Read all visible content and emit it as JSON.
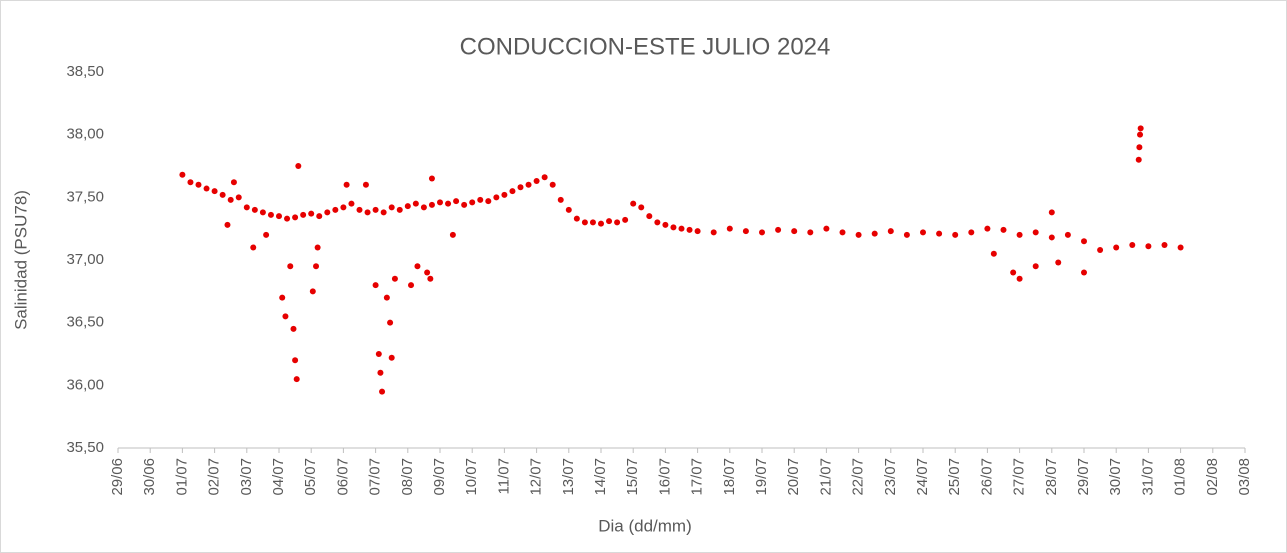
{
  "chart_data": {
    "type": "scatter",
    "title": "CONDUCCION-ESTE JULIO 2024",
    "x_label": "Dia (dd/mm)",
    "y_label": "Salinidad (PSU78)",
    "xlim": [
      0,
      35
    ],
    "xticks": [
      {
        "value": 0,
        "label": "29/06"
      },
      {
        "value": 1,
        "label": "30/06"
      },
      {
        "value": 2,
        "label": "01/07"
      },
      {
        "value": 3,
        "label": "02/07"
      },
      {
        "value": 4,
        "label": "03/07"
      },
      {
        "value": 5,
        "label": "04/07"
      },
      {
        "value": 6,
        "label": "05/07"
      },
      {
        "value": 7,
        "label": "06/07"
      },
      {
        "value": 8,
        "label": "07/07"
      },
      {
        "value": 9,
        "label": "08/07"
      },
      {
        "value": 10,
        "label": "09/07"
      },
      {
        "value": 11,
        "label": "10/07"
      },
      {
        "value": 12,
        "label": "11/07"
      },
      {
        "value": 13,
        "label": "12/07"
      },
      {
        "value": 14,
        "label": "13/07"
      },
      {
        "value": 15,
        "label": "14/07"
      },
      {
        "value": 16,
        "label": "15/07"
      },
      {
        "value": 17,
        "label": "16/07"
      },
      {
        "value": 18,
        "label": "17/07"
      },
      {
        "value": 19,
        "label": "18/07"
      },
      {
        "value": 20,
        "label": "19/07"
      },
      {
        "value": 21,
        "label": "20/07"
      },
      {
        "value": 22,
        "label": "21/07"
      },
      {
        "value": 23,
        "label": "22/07"
      },
      {
        "value": 24,
        "label": "23/07"
      },
      {
        "value": 25,
        "label": "24/07"
      },
      {
        "value": 26,
        "label": "25/07"
      },
      {
        "value": 27,
        "label": "26/07"
      },
      {
        "value": 28,
        "label": "27/07"
      },
      {
        "value": 29,
        "label": "28/07"
      },
      {
        "value": 30,
        "label": "29/07"
      },
      {
        "value": 31,
        "label": "30/07"
      },
      {
        "value": 32,
        "label": "31/07"
      },
      {
        "value": 33,
        "label": "01/08"
      },
      {
        "value": 34,
        "label": "02/08"
      },
      {
        "value": 35,
        "label": "03/08"
      }
    ],
    "ylim": [
      35.5,
      38.5
    ],
    "yticks": [
      {
        "value": 35.5,
        "label": "35,50"
      },
      {
        "value": 36,
        "label": "36,00"
      },
      {
        "value": 36.5,
        "label": "36,50"
      },
      {
        "value": 37,
        "label": "37,00"
      },
      {
        "value": 37.5,
        "label": "37,50"
      },
      {
        "value": 38,
        "label": "38,00"
      },
      {
        "value": 38.5,
        "label": "38,50"
      }
    ],
    "color": "#e60000",
    "x": [
      2.0,
      2.25,
      2.5,
      2.75,
      3.0,
      3.25,
      3.5,
      3.75,
      4.0,
      4.25,
      4.5,
      4.75,
      5.0,
      5.25,
      5.5,
      5.75,
      6.0,
      6.25,
      6.5,
      6.75,
      7.0,
      7.25,
      7.5,
      7.75,
      8.0,
      8.25,
      8.5,
      8.75,
      9.0,
      9.25,
      9.5,
      9.75,
      10.0,
      10.25,
      10.5,
      10.75,
      11.0,
      11.25,
      11.5,
      11.75,
      12.0,
      12.25,
      12.5,
      12.75,
      13.0,
      13.25,
      13.5,
      13.75,
      14.0,
      14.25,
      14.5,
      14.75,
      15.0,
      15.25,
      15.5,
      15.75,
      16.0,
      16.25,
      16.5,
      16.75,
      17.0,
      17.25,
      17.5,
      17.75,
      18.0,
      18.5,
      19,
      19.5,
      20,
      20.5,
      21,
      21.5,
      22,
      22.5,
      23,
      23.5,
      24,
      24.5,
      25,
      25.5,
      26,
      26.5,
      27,
      27.5,
      28,
      28.5,
      29,
      29.5,
      30,
      30.5,
      31,
      31.5,
      32,
      32.5,
      33,
      3.4,
      3.6,
      4.2,
      4.6,
      5.1,
      5.2,
      5.35,
      5.45,
      5.5,
      5.55,
      5.6,
      6.05,
      6.15,
      6.2,
      7.1,
      7.7,
      8.0,
      8.1,
      8.15,
      8.2,
      8.35,
      8.45,
      8.5,
      8.6,
      9.1,
      9.3,
      9.6,
      9.7,
      9.75,
      10.4,
      27.2,
      27.8,
      28.0,
      28.5,
      29.0,
      29.2,
      30.0,
      31.7,
      31.72,
      31.74,
      31.76
    ],
    "values": [
      37.68,
      37.62,
      37.6,
      37.57,
      37.55,
      37.52,
      37.48,
      37.5,
      37.42,
      37.4,
      37.38,
      37.36,
      37.35,
      37.33,
      37.34,
      37.36,
      37.37,
      37.35,
      37.38,
      37.4,
      37.42,
      37.45,
      37.4,
      37.38,
      37.4,
      37.38,
      37.42,
      37.4,
      37.43,
      37.45,
      37.42,
      37.44,
      37.46,
      37.45,
      37.47,
      37.44,
      37.46,
      37.48,
      37.47,
      37.5,
      37.52,
      37.55,
      37.58,
      37.6,
      37.63,
      37.66,
      37.6,
      37.48,
      37.4,
      37.33,
      37.3,
      37.3,
      37.29,
      37.31,
      37.3,
      37.32,
      37.45,
      37.42,
      37.35,
      37.3,
      37.28,
      37.26,
      37.25,
      37.24,
      37.23,
      37.22,
      37.25,
      37.23,
      37.22,
      37.24,
      37.23,
      37.22,
      37.25,
      37.22,
      37.2,
      37.21,
      37.23,
      37.2,
      37.22,
      37.21,
      37.2,
      37.22,
      37.25,
      37.24,
      37.2,
      37.22,
      37.18,
      37.2,
      37.15,
      37.08,
      37.1,
      37.12,
      37.11,
      37.12,
      37.1,
      37.28,
      37.62,
      37.1,
      37.2,
      36.7,
      36.55,
      36.95,
      36.45,
      36.2,
      36.05,
      37.75,
      36.75,
      36.95,
      37.1,
      37.6,
      37.6,
      36.8,
      36.25,
      36.1,
      35.95,
      36.7,
      36.5,
      36.22,
      36.85,
      36.8,
      36.95,
      36.9,
      36.85,
      37.65,
      37.2,
      37.05,
      36.9,
      36.85,
      36.95,
      37.38,
      36.98,
      36.9,
      37.8,
      37.9,
      38.0,
      38.05
    ]
  }
}
